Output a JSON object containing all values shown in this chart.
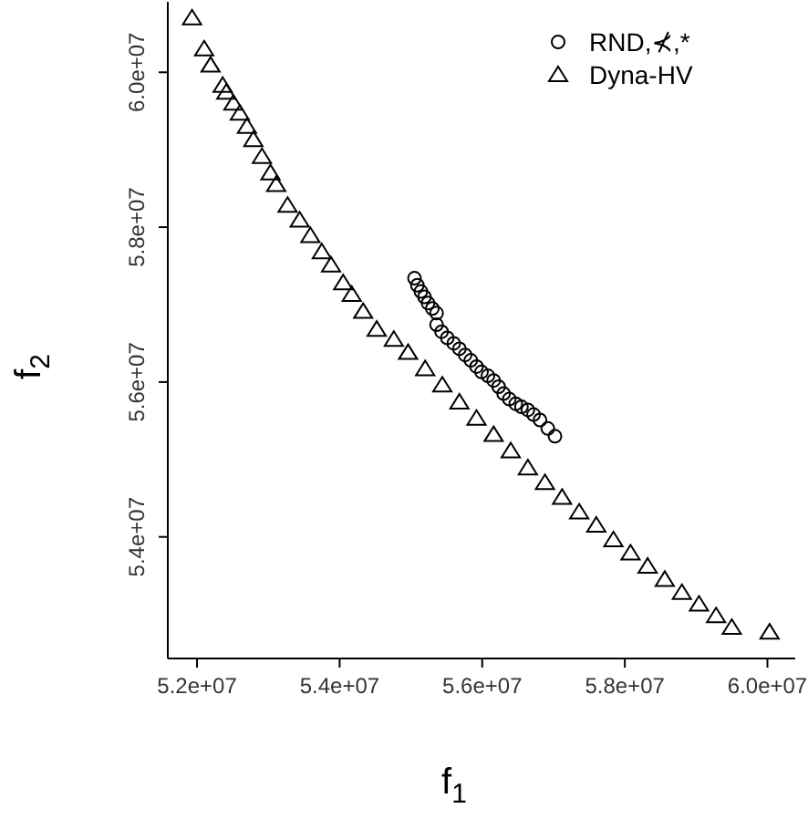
{
  "chart_data": {
    "type": "scatter",
    "xlabel": "f$_{1}$",
    "ylabel": "f$_{2}$",
    "legend": "top right",
    "xlim": [
      51590000,
      60390000
    ],
    "ylim": [
      52430000,
      60910000
    ],
    "xticks": [
      {
        "value": 52000000,
        "label": "5.2e+07"
      },
      {
        "value": 54000000,
        "label": "5.4e+07"
      },
      {
        "value": 56000000,
        "label": "5.6e+07"
      },
      {
        "value": 58000000,
        "label": "5.8e+07"
      },
      {
        "value": 60000000,
        "label": "6.0e+07"
      }
    ],
    "yticks": [
      {
        "value": 54000000,
        "label": "5.4e+07"
      },
      {
        "value": 56000000,
        "label": "5.6e+07"
      },
      {
        "value": 58000000,
        "label": "5.8e+07"
      },
      {
        "value": 60000000,
        "label": "6.0e+07"
      }
    ],
    "series": [
      {
        "name": "RND,⊀,*",
        "color": "#000000",
        "marker": "circle",
        "x": [
          55050000,
          55090000,
          55140000,
          55190000,
          55240000,
          55300000,
          55360000,
          55360000,
          55430000,
          55510000,
          55600000,
          55680000,
          55760000,
          55840000,
          55920000,
          55990000,
          56080000,
          56160000,
          56230000,
          56300000,
          56380000,
          56470000,
          56550000,
          56640000,
          56720000,
          56810000,
          56920000,
          57020000
        ],
        "values": [
          57340000,
          57250000,
          57170000,
          57100000,
          57020000,
          56950000,
          56890000,
          56740000,
          56650000,
          56570000,
          56500000,
          56430000,
          56350000,
          56280000,
          56200000,
          56130000,
          56080000,
          56020000,
          55940000,
          55850000,
          55780000,
          55720000,
          55680000,
          55640000,
          55580000,
          55510000,
          55400000,
          55300000
        ]
      },
      {
        "name": "Dyna-HV",
        "color": "#000000",
        "marker": "triangle",
        "x": [
          51930000,
          52100000,
          52190000,
          52360000,
          52410000,
          52510000,
          52600000,
          52700000,
          52790000,
          52910000,
          53030000,
          53110000,
          53270000,
          53440000,
          53590000,
          53750000,
          53880000,
          54050000,
          54170000,
          54330000,
          54520000,
          54760000,
          54960000,
          55200000,
          55440000,
          55680000,
          55920000,
          56160000,
          56400000,
          56640000,
          56880000,
          57120000,
          57360000,
          57600000,
          57840000,
          58080000,
          58320000,
          58560000,
          58800000,
          59040000,
          59280000,
          59500000,
          60030000
        ],
        "values": [
          60700000,
          60300000,
          60090000,
          59830000,
          59740000,
          59600000,
          59470000,
          59300000,
          59130000,
          58910000,
          58700000,
          58550000,
          58280000,
          58090000,
          57890000,
          57680000,
          57510000,
          57280000,
          57130000,
          56910000,
          56680000,
          56550000,
          56380000,
          56170000,
          55960000,
          55740000,
          55530000,
          55320000,
          55110000,
          54890000,
          54700000,
          54510000,
          54320000,
          54150000,
          53960000,
          53790000,
          53620000,
          53450000,
          53280000,
          53130000,
          52980000,
          52830000,
          52770000
        ]
      }
    ]
  }
}
